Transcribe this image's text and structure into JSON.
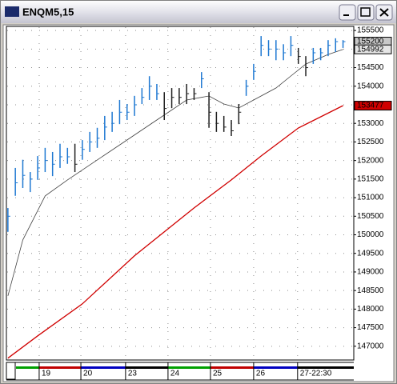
{
  "window": {
    "title": "ENQM5,15"
  },
  "chart_data": {
    "type": "ohlc",
    "ylim": [
      146630,
      155610
    ],
    "yticks": [
      147000,
      147500,
      148000,
      148500,
      149000,
      149500,
      150000,
      150500,
      151000,
      151500,
      152000,
      152500,
      153000,
      153500,
      154000,
      154500,
      155000,
      155500
    ],
    "xlim": [
      -0.2,
      45.8
    ],
    "xticks": [
      {
        "value": 4.2,
        "label": "19"
      },
      {
        "value": 9.8,
        "label": "20"
      },
      {
        "value": 15.8,
        "label": "23"
      },
      {
        "value": 21.5,
        "label": "24"
      },
      {
        "value": 27.2,
        "label": "25"
      },
      {
        "value": 33.0,
        "label": "26"
      },
      {
        "value": 38.9,
        "label": "27-22:30"
      }
    ],
    "grid": true,
    "bars": {
      "high": [
        150720,
        151800,
        152020,
        151690,
        152120,
        152340,
        152230,
        152450,
        152340,
        152450,
        152550,
        152770,
        152880,
        153200,
        153310,
        153630,
        153520,
        153740,
        153950,
        154270,
        154060,
        153840,
        153950,
        153950,
        154060,
        153950,
        154380,
        153840,
        153310,
        153200,
        153090,
        153520,
        154170,
        154600,
        155350,
        155240,
        155240,
        155130,
        155350,
        155030,
        154810,
        155030,
        155030,
        155240,
        155290,
        155240
      ],
      "low": [
        150080,
        151050,
        151260,
        151150,
        151480,
        151690,
        151580,
        151800,
        151910,
        151690,
        152020,
        152230,
        152340,
        152550,
        152770,
        152980,
        153090,
        153200,
        153520,
        153630,
        153630,
        153090,
        153410,
        153520,
        153520,
        153630,
        153950,
        152880,
        152770,
        152770,
        152660,
        152980,
        153740,
        154170,
        154810,
        154810,
        154700,
        154700,
        154810,
        154600,
        154270,
        154600,
        154700,
        154810,
        154920,
        155030
      ],
      "close": [
        150500,
        151400,
        151600,
        151500,
        151800,
        152000,
        151900,
        152100,
        152100,
        151900,
        152300,
        152500,
        152600,
        152900,
        153000,
        153300,
        153300,
        153500,
        153700,
        154000,
        153800,
        153400,
        153700,
        153700,
        153800,
        153800,
        154200,
        153300,
        153000,
        152900,
        152800,
        153300,
        154000,
        154400,
        155100,
        155000,
        155000,
        154900,
        155100,
        154800,
        154500,
        154900,
        154900,
        155100,
        155200,
        155200
      ],
      "colors": [
        "#1e78d2",
        "#1e78d2",
        "#1e78d2",
        "#1e78d2",
        "#1e78d2",
        "#1e78d2",
        "#1e78d2",
        "#1e78d2",
        "#1e78d2",
        "#202020",
        "#1e78d2",
        "#1e78d2",
        "#1e78d2",
        "#1e78d2",
        "#1e78d2",
        "#1e78d2",
        "#1e78d2",
        "#1e78d2",
        "#1e78d2",
        "#1e78d2",
        "#1e78d2",
        "#202020",
        "#202020",
        "#202020",
        "#202020",
        "#202020",
        "#1e78d2",
        "#202020",
        "#202020",
        "#202020",
        "#202020",
        "#202020",
        "#1e78d2",
        "#1e78d2",
        "#1e78d2",
        "#1e78d2",
        "#1e78d2",
        "#1e78d2",
        "#1e78d2",
        "#202020",
        "#202020",
        "#1e78d2",
        "#1e78d2",
        "#1e78d2",
        "#1e78d2",
        "#1e78d2"
      ]
    },
    "lines": [
      {
        "color": "#404040",
        "x": [
          0,
          2,
          5,
          8,
          12,
          16,
          20,
          24,
          27,
          29,
          31,
          33,
          36,
          38,
          40,
          43,
          45
        ],
        "values": [
          148357,
          149863,
          151046,
          151477,
          152015,
          152552,
          153090,
          153628,
          153736,
          153521,
          153413,
          153628,
          153951,
          154274,
          154596,
          154854,
          154992
        ]
      },
      {
        "color": "#d00000",
        "x": [
          0,
          4,
          10,
          17,
          25,
          30,
          34,
          39,
          45
        ],
        "values": [
          146679,
          147281,
          148142,
          149433,
          150724,
          151477,
          152122,
          152875,
          153477
        ]
      }
    ]
  }
}
